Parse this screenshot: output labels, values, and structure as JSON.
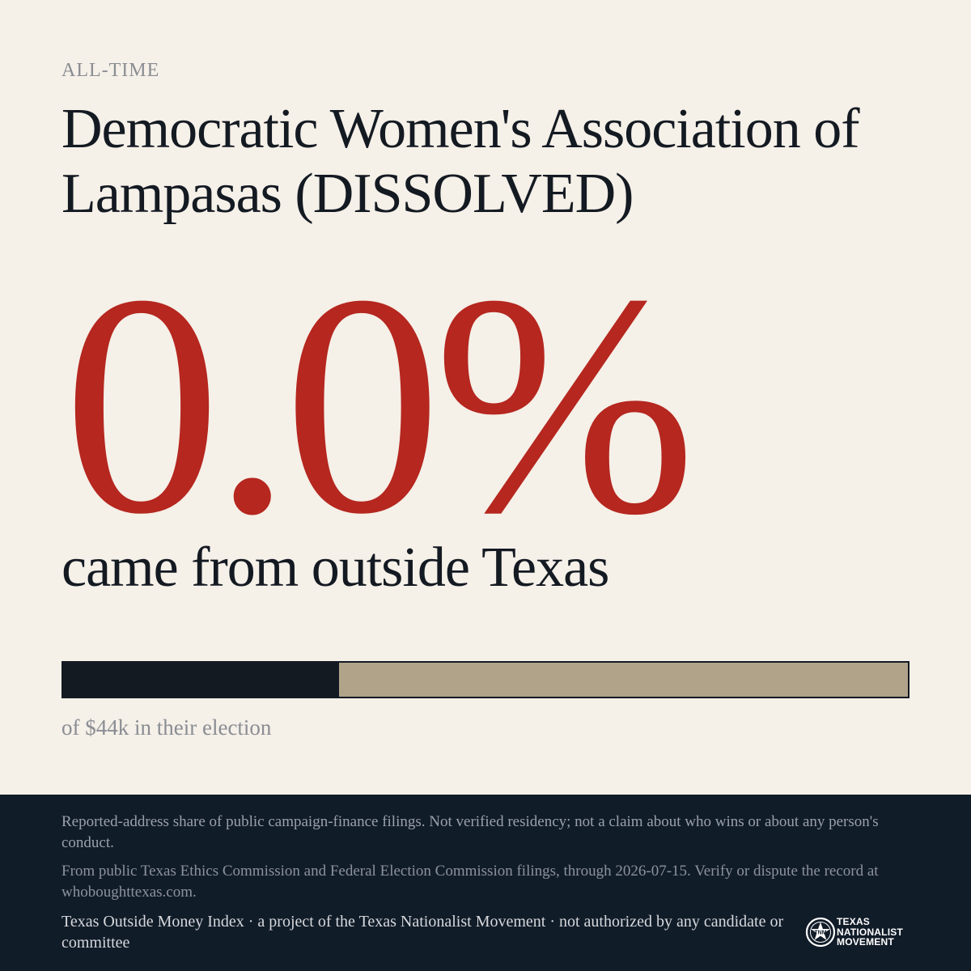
{
  "header": {
    "eyebrow": "ALL-TIME",
    "title": "Democratic Women's Association of Lampasas (DISSOLVED)"
  },
  "stat": {
    "value": "0.0%",
    "caption": "came from outside Texas"
  },
  "bar": {
    "fill_fraction": 0.327,
    "note": "of $44k in their election",
    "fill_color": "#141a22",
    "track_color": "#b0a38a"
  },
  "footer": {
    "disclaimer": "Reported-address share of public campaign-finance filings. Not verified residency; not a claim about who wins or about any person's conduct.",
    "source": "From public Texas Ethics Commission and Federal Election Commission filings, through 2026-07-15. Verify or dispute the record at whoboughttexas.com.",
    "credit": "Texas Outside Money Index · a project of the Texas Nationalist Movement · not authorized by any candidate or committee",
    "logo": {
      "icon": "star-seal-icon",
      "line1": "TEXAS",
      "line2": "NATIONALIST",
      "line3": "MOVEMENT"
    }
  },
  "colors": {
    "accent": "#b5271f",
    "ink": "#141a22",
    "background": "#f5f0e8",
    "footer_bg": "#111c29"
  }
}
